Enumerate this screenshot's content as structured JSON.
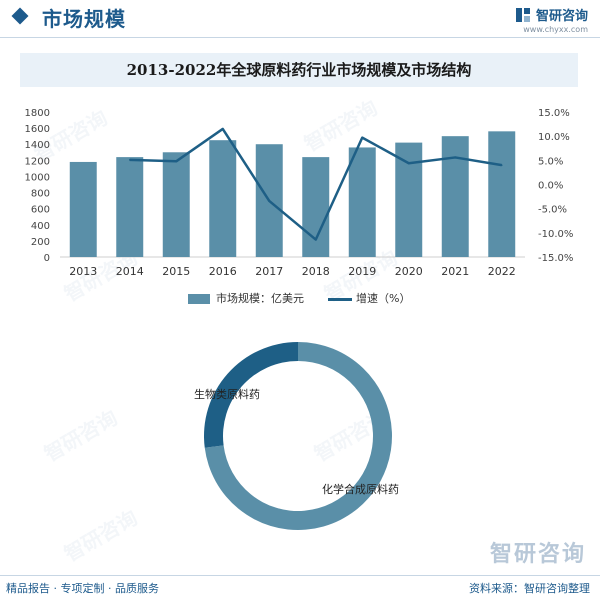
{
  "header": {
    "title": "市场规模",
    "brand_name": "智研咨询",
    "brand_url": "www.chyxx.com"
  },
  "watermark_text": "智研咨询",
  "chart_data": [
    {
      "type": "bar",
      "title": "2013-2022年全球原料药行业市场规模及市场结构",
      "categories": [
        "2013",
        "2014",
        "2015",
        "2016",
        "2017",
        "2018",
        "2019",
        "2020",
        "2021",
        "2022"
      ],
      "series": [
        {
          "name": "市场规模：亿美元",
          "type": "bar",
          "axis": "left",
          "color": "#5a8fa8",
          "values": [
            1180,
            1240,
            1300,
            1450,
            1400,
            1240,
            1360,
            1420,
            1500,
            1560
          ]
        },
        {
          "name": "增速（%）",
          "type": "line",
          "axis": "right",
          "color": "#1e5f86",
          "values": [
            null,
            5.1,
            4.8,
            11.5,
            -3.4,
            -11.4,
            9.7,
            4.4,
            5.6,
            4.0
          ]
        }
      ],
      "y_left": {
        "min": 0,
        "max": 1800,
        "ticks": [
          "0",
          "200",
          "400",
          "600",
          "800",
          "1000",
          "1200",
          "1400",
          "1600",
          "1800"
        ]
      },
      "y_right": {
        "min": -15,
        "max": 15,
        "ticks": [
          "-15.0%",
          "-10.0%",
          "-5.0%",
          "0.0%",
          "5.0%",
          "10.0%",
          "15.0%"
        ]
      },
      "grid": false,
      "legend": "bottom"
    },
    {
      "type": "pie",
      "style": "donut",
      "slices": [
        {
          "label": "化学合成原料药",
          "value": 73,
          "color": "#5a8fa8"
        },
        {
          "label": "生物类原料药",
          "value": 27,
          "color": "#1e5f86"
        }
      ]
    }
  ],
  "footer": {
    "logo_text": "智研咨询",
    "left": "精品报告 · 专项定制 · 品质服务",
    "right": "资料来源：智研咨询整理"
  }
}
